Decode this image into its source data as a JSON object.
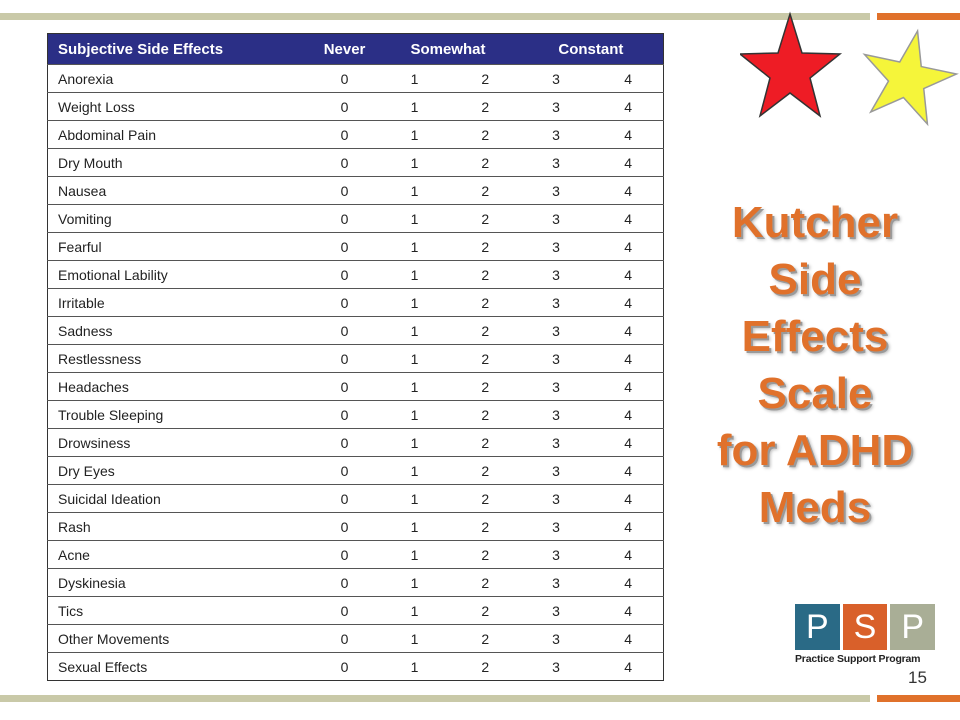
{
  "table": {
    "headers": {
      "effect": "Subjective Side Effects",
      "never": "Never",
      "somewhat": "Somewhat",
      "constant": "Constant"
    },
    "scale": [
      "0",
      "1",
      "2",
      "3",
      "4"
    ],
    "rows": [
      {
        "label": "Anorexia"
      },
      {
        "label": "Weight Loss"
      },
      {
        "label": "Abdominal Pain"
      },
      {
        "label": "Dry Mouth"
      },
      {
        "label": "Nausea"
      },
      {
        "label": "Vomiting"
      },
      {
        "label": "Fearful"
      },
      {
        "label": "Emotional Lability"
      },
      {
        "label": "Irritable"
      },
      {
        "label": "Sadness"
      },
      {
        "label": "Restlessness"
      },
      {
        "label": "Headaches"
      },
      {
        "label": "Trouble Sleeping"
      },
      {
        "label": "Drowsiness"
      },
      {
        "label": "Dry Eyes"
      },
      {
        "label": "Suicidal Ideation"
      },
      {
        "label": "Rash"
      },
      {
        "label": "Acne"
      },
      {
        "label": "Dyskinesia"
      },
      {
        "label": "Tics"
      },
      {
        "label": "Other Movements"
      },
      {
        "label": "Sexual Effects"
      }
    ]
  },
  "title": {
    "lines": [
      "Kutcher",
      "Side",
      "Effects",
      "Scale",
      "for ADHD",
      "Meds"
    ]
  },
  "logo": {
    "letters": [
      "P",
      "S",
      "P"
    ],
    "caption": "Practice Support Program"
  },
  "page_number": "15",
  "colors": {
    "header_bg": "#2b2f86",
    "title": "#e0712b",
    "accent_bar": "#e0712b",
    "neutral_bar": "#c9c9a8",
    "star_red": "#ee1c25",
    "star_yellow": "#f5f53a"
  }
}
